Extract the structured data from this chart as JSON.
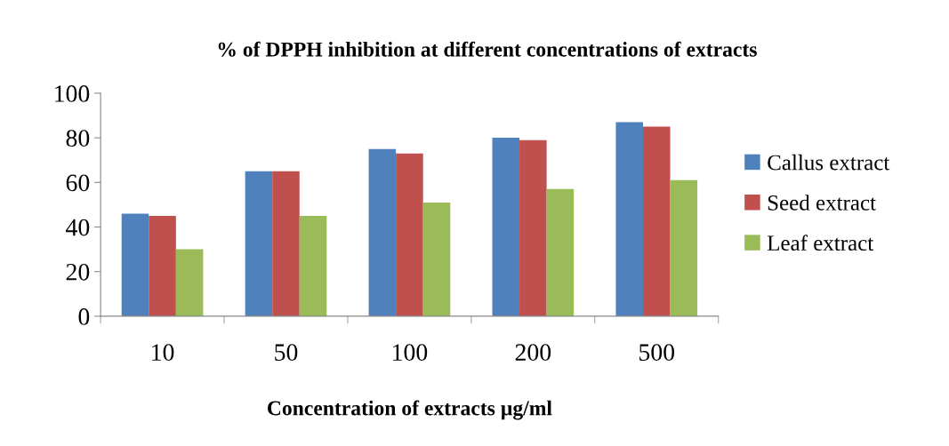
{
  "chart_data": {
    "type": "bar",
    "title": "% of DPPH inhibition at different concentrations of extracts",
    "xlabel": "Concentration of extracts µg/ml",
    "categories": [
      "10",
      "50",
      "100",
      "200",
      "500"
    ],
    "series": [
      {
        "name": "Callus extract",
        "color": "#4f81bd",
        "values": [
          46,
          65,
          75,
          80,
          87
        ]
      },
      {
        "name": "Seed extract",
        "color": "#c0504d",
        "values": [
          45,
          65,
          73,
          79,
          85
        ]
      },
      {
        "name": "Leaf extract",
        "color": "#9bbb59",
        "values": [
          30,
          45,
          51,
          57,
          61
        ]
      }
    ],
    "ylim": [
      0,
      100
    ],
    "yticks": [
      0,
      20,
      40,
      60,
      80,
      100
    ],
    "grid": false,
    "legend": "right"
  }
}
